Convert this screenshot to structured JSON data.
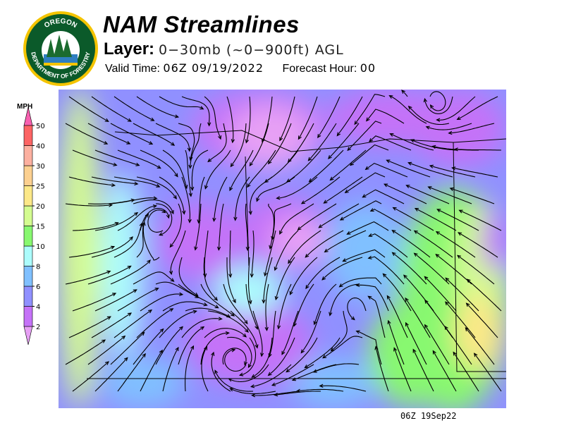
{
  "header": {
    "title": "NAM Streamlines",
    "layer_label": "Layer:",
    "layer_value": "0−30mb (~0−900ft) AGL",
    "valid_label": "Valid Time:",
    "valid_value": "06Z 09/19/2022",
    "forecast_label": "Forecast Hour:",
    "forecast_value": "00"
  },
  "logo": {
    "top_text": "OREGON",
    "bottom_text": "DEPARTMENT OF FORESTRY"
  },
  "legend": {
    "units": "MPH",
    "levels": [
      "2",
      "4",
      "6",
      "8",
      "10",
      "15",
      "20",
      "25",
      "30",
      "40",
      "50"
    ],
    "colors": [
      "#e7a0f5",
      "#c572f8",
      "#9090ff",
      "#80c0ff",
      "#acfcfc",
      "#88f870",
      "#d4fc90",
      "#fce888",
      "#fcd090",
      "#fcb0a0",
      "#fc6464",
      "#f860b0"
    ]
  },
  "map": {
    "valid_stamp": "06Z 19Sep22"
  }
}
